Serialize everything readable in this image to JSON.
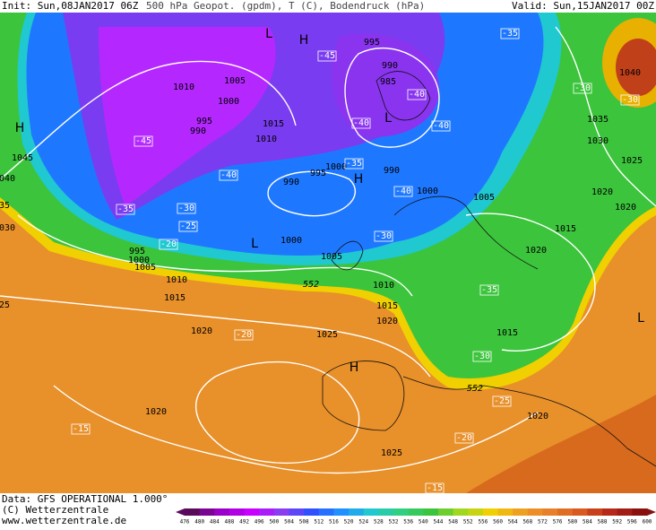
{
  "header": {
    "init": "Init: Sun,08JAN2017 06Z",
    "title": "500 hPa Geopot. (gpdm), T (C), Bodendruck (hPa)",
    "valid": "Valid: Sun,15JAN2017 00Z"
  },
  "footer": {
    "data": "Data: GFS OPERATIONAL 1.000°",
    "copyright": "(C) Wetterzentrale",
    "url": "www.wetterzentrale.de"
  },
  "colorbar": {
    "labels": [
      "476",
      "480",
      "484",
      "488",
      "492",
      "496",
      "500",
      "504",
      "508",
      "512",
      "516",
      "520",
      "524",
      "528",
      "532",
      "536",
      "540",
      "544",
      "548",
      "552",
      "556",
      "560",
      "564",
      "568",
      "572",
      "576",
      "580",
      "584",
      "588",
      "592",
      "596",
      "600"
    ]
  },
  "map": {
    "pressure_labels": [
      "1010",
      "1005",
      "1000",
      "995",
      "990",
      "1015",
      "1010",
      "995",
      "990",
      "985",
      "990",
      "1000",
      "995",
      "990",
      "1000",
      "1005",
      "1045",
      "040",
      "35",
      "030",
      "1000",
      "995",
      "1000",
      "1005",
      "1010",
      "1015",
      "1020",
      "1025",
      "1010",
      "1015",
      "1020",
      "1005",
      "1020",
      "1015",
      "1020",
      "1020",
      "1025",
      "1030",
      "1035",
      "1040",
      "1015",
      "1020",
      "1025",
      "1020",
      "25"
    ],
    "temperature_labels": [
      "-35",
      "-45",
      "-40",
      "-40",
      "-40",
      "-45",
      "-40",
      "-35",
      "-30",
      "-35",
      "-25",
      "-20",
      "-40",
      "-30",
      "-35",
      "-20",
      "-30",
      "-25",
      "-20",
      "-15",
      "-15",
      "-30",
      "-30"
    ],
    "pressure_centers": [
      "H",
      "L",
      "H",
      "L",
      "H",
      "L",
      "H",
      "L"
    ],
    "contour_labels": [
      "552",
      "552"
    ]
  }
}
